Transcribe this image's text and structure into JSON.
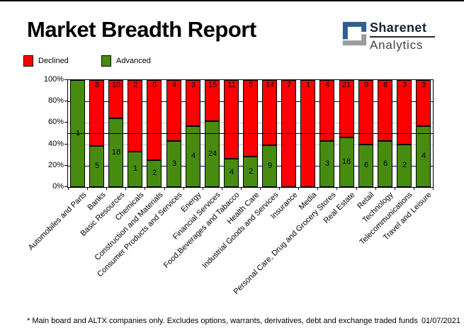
{
  "page": {
    "title": "Market Breadth Report",
    "footnote": "* Main board and ALTX companies only. Excludes options, warrants, derivatives, debt and exchange traded funds",
    "date": "01/07/2021"
  },
  "logo": {
    "line1": "Sharenet",
    "line2": "Analytics",
    "colors": {
      "blue": "#2f5f92",
      "gray": "#9a9c9e"
    }
  },
  "legend": [
    {
      "label": "Declined",
      "color": "#ff0000"
    },
    {
      "label": "Advanced",
      "color": "#478c10"
    }
  ],
  "chart_data": {
    "type": "bar",
    "stacked": true,
    "normalized": "percent_of_total",
    "title": "Market Breadth Report",
    "categories": [
      "Automobiles and Parts",
      "Banks",
      "Basic Resources",
      "Chemicals",
      "Construction and Materials",
      "Consumer Products and Services",
      "Energy",
      "Financial Services",
      "Food,Beverages and Tabacco",
      "Health Care",
      "Industrial Goods and Services",
      "Insurance",
      "Media",
      "Personal Care, Drug and Grocery Stores",
      "Real Estate",
      "Retail",
      "Technology",
      "Telecommunications",
      "Travel and Leisure"
    ],
    "series": [
      {
        "name": "Declined",
        "color": "#ff0000",
        "values": [
          0,
          8,
          10,
          2,
          6,
          4,
          3,
          15,
          11,
          5,
          14,
          7,
          1,
          4,
          21,
          9,
          8,
          3,
          3
        ]
      },
      {
        "name": "Advanced",
        "color": "#478c10",
        "values": [
          1,
          5,
          18,
          1,
          2,
          3,
          4,
          24,
          4,
          2,
          9,
          0,
          0,
          3,
          18,
          6,
          6,
          2,
          4
        ]
      }
    ],
    "xlabel": "",
    "ylabel": "",
    "ylim": [
      0,
      100
    ],
    "yticks": [
      "0%",
      "20%",
      "40%",
      "60%",
      "80%",
      "100%"
    ],
    "legend_position": "top-left",
    "gridlines": [
      {
        "pct": 20,
        "color": "#000080",
        "over": false
      },
      {
        "pct": 40,
        "color": "#c0c0c0",
        "over": false
      },
      {
        "pct": 60,
        "color": "#c0c0c0",
        "over": false
      },
      {
        "pct": 80,
        "color": "#000080",
        "over": false
      },
      {
        "pct": 50,
        "color": "#000000",
        "over": true
      }
    ]
  }
}
